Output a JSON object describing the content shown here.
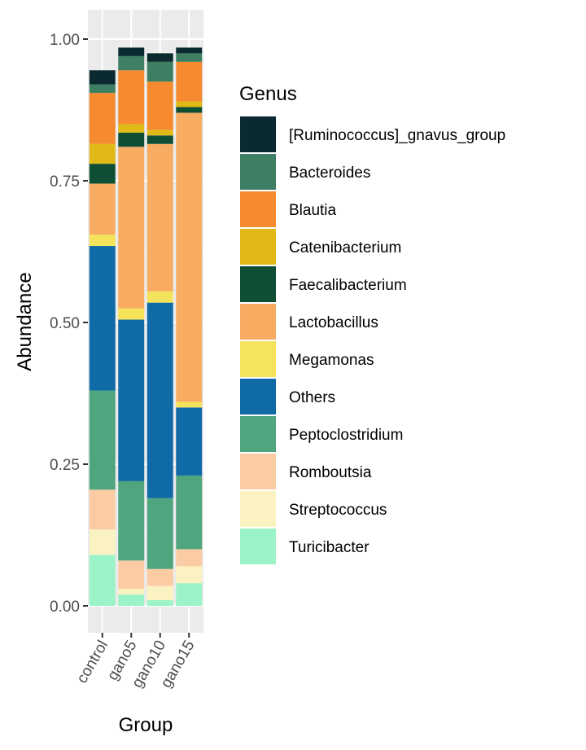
{
  "chart_data": {
    "type": "bar",
    "stacked": true,
    "xlabel": "Group",
    "ylabel": "Abundance",
    "ylim": [
      0,
      1.0
    ],
    "yticks": [
      "0.00",
      "0.25",
      "0.50",
      "0.75",
      "1.00"
    ],
    "categories": [
      "control",
      "gano5",
      "gano10",
      "gano15"
    ],
    "legend_title": "Genus",
    "legend_position": "right",
    "series": [
      {
        "name": "[Ruminococcus]_gnavus_group",
        "color": "#0a2a30",
        "values": [
          0.025,
          0.015,
          0.015,
          0.01
        ]
      },
      {
        "name": "Bacteroides",
        "color": "#3e7f64",
        "values": [
          0.015,
          0.025,
          0.035,
          0.015
        ]
      },
      {
        "name": "Blautia",
        "color": "#f58a2e",
        "values": [
          0.09,
          0.095,
          0.085,
          0.07
        ]
      },
      {
        "name": "Catenibacterium",
        "color": "#e0b917",
        "values": [
          0.035,
          0.015,
          0.01,
          0.01
        ]
      },
      {
        "name": "Faecalibacterium",
        "color": "#0e4e35",
        "values": [
          0.035,
          0.025,
          0.015,
          0.01
        ]
      },
      {
        "name": "Lactobacillus",
        "color": "#f7ac62",
        "values": [
          0.09,
          0.285,
          0.26,
          0.51
        ]
      },
      {
        "name": "Megamonas",
        "color": "#f5e35c",
        "values": [
          0.02,
          0.02,
          0.02,
          0.01
        ]
      },
      {
        "name": "Others",
        "color": "#0f6aa6",
        "values": [
          0.255,
          0.285,
          0.345,
          0.12
        ]
      },
      {
        "name": "Peptoclostridium",
        "color": "#4fa57e",
        "values": [
          0.175,
          0.14,
          0.125,
          0.13
        ]
      },
      {
        "name": "Romboutsia",
        "color": "#fbcca4",
        "values": [
          0.07,
          0.05,
          0.03,
          0.03
        ]
      },
      {
        "name": "Streptococcus",
        "color": "#fbf2c2",
        "values": [
          0.045,
          0.01,
          0.025,
          0.03
        ]
      },
      {
        "name": "Turicibacter",
        "color": "#9df3c8",
        "values": [
          0.09,
          0.02,
          0.01,
          0.04
        ]
      }
    ],
    "grid": true,
    "panel_background": "#ebebeb"
  }
}
